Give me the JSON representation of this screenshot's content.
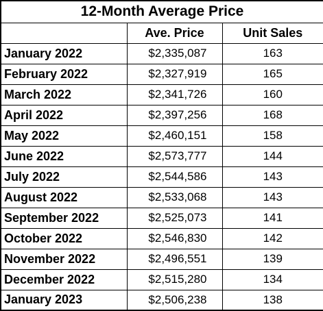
{
  "chart_data": {
    "type": "table",
    "title": "12-Month Average Price",
    "columns": [
      "",
      "Ave. Price",
      "Unit Sales"
    ],
    "rows": [
      {
        "month": "January 2022",
        "price": "$2,335,087",
        "units": "163"
      },
      {
        "month": "February 2022",
        "price": "$2,327,919",
        "units": "165"
      },
      {
        "month": "March 2022",
        "price": "$2,341,726",
        "units": "160"
      },
      {
        "month": "April 2022",
        "price": "$2,397,256",
        "units": "168"
      },
      {
        "month": "May 2022",
        "price": "$2,460,151",
        "units": "158"
      },
      {
        "month": "June 2022",
        "price": "$2,573,777",
        "units": "144"
      },
      {
        "month": "July 2022",
        "price": "$2,544,586",
        "units": "143"
      },
      {
        "month": "August 2022",
        "price": "$2,533,068",
        "units": "143"
      },
      {
        "month": "September 2022",
        "price": "$2,525,073",
        "units": "141"
      },
      {
        "month": "October 2022",
        "price": "$2,546,830",
        "units": "142"
      },
      {
        "month": "November 2022",
        "price": "$2,496,551",
        "units": "139"
      },
      {
        "month": "December 2022",
        "price": "$2,515,280",
        "units": "134"
      },
      {
        "month": "January 2023",
        "price": "$2,506,238",
        "units": "138"
      }
    ]
  }
}
